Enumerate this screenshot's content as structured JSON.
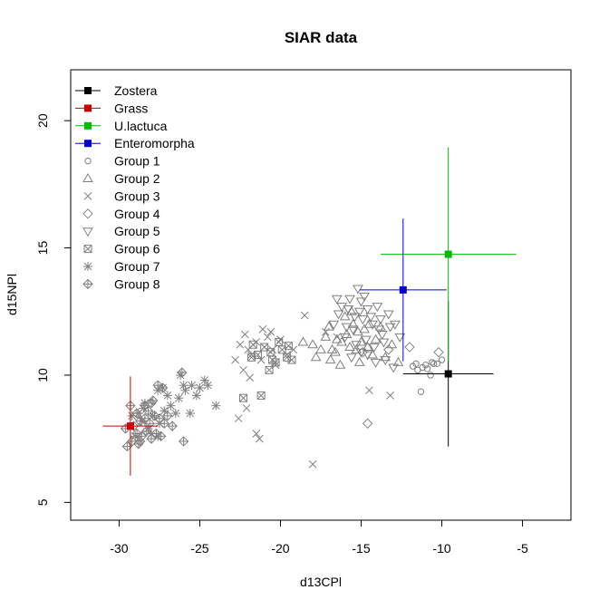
{
  "chart_data": {
    "type": "scatter",
    "title": "SIAR data",
    "xlabel": "d13CPl",
    "ylabel": "d15NPl",
    "xlim": [
      -33,
      -2
    ],
    "ylim": [
      4.3,
      22
    ],
    "x_ticks": [
      -30,
      -25,
      -20,
      -15,
      -10,
      -5
    ],
    "y_ticks": [
      5,
      10,
      15,
      20
    ],
    "grid": false,
    "legend_position": "top-left",
    "sources": [
      {
        "name": "Zostera",
        "color": "#000000",
        "x": -9.6,
        "y": 10.05,
        "x_sd": 2.8,
        "y_sd": 2.85
      },
      {
        "name": "Grass",
        "color": "#cc0000",
        "x": -29.3,
        "y": 8.0,
        "x_sd": 1.7,
        "y_sd": 1.95
      },
      {
        "name": "U.lactuca",
        "color": "#00bb00",
        "x": -9.6,
        "y": 14.75,
        "x_sd": 4.2,
        "y_sd": 4.2
      },
      {
        "name": "Enteromorpha",
        "color": "#0000cc",
        "x": -12.4,
        "y": 13.35,
        "x_sd": 2.7,
        "y_sd": 2.8
      }
    ],
    "groups": [
      {
        "name": "Group 1",
        "symbol": "circle",
        "color": "#808080",
        "points": [
          [
            -11.8,
            10.35
          ],
          [
            -11.5,
            10.2
          ],
          [
            -11.2,
            10.3
          ],
          [
            -10.9,
            10.25
          ],
          [
            -10.6,
            10.5
          ],
          [
            -10.3,
            10.45
          ],
          [
            -11.3,
            9.35
          ],
          [
            -10.7,
            10.0
          ],
          [
            -11.6,
            10.45
          ],
          [
            -10.5,
            10.45
          ],
          [
            -10.0,
            10.6
          ],
          [
            -11.0,
            10.4
          ]
        ]
      },
      {
        "name": "Group 2",
        "symbol": "triangle-up",
        "color": "#808080",
        "points": [
          [
            -18.0,
            11.2
          ],
          [
            -17.5,
            11.0
          ],
          [
            -17.2,
            11.5
          ],
          [
            -16.8,
            11.0
          ],
          [
            -16.5,
            11.4
          ],
          [
            -16.2,
            11.3
          ],
          [
            -15.9,
            11.6
          ],
          [
            -15.5,
            12.0
          ],
          [
            -15.2,
            11.7
          ],
          [
            -15.0,
            11.3
          ],
          [
            -14.8,
            11.8
          ],
          [
            -14.5,
            12.0
          ],
          [
            -16.0,
            12.3
          ],
          [
            -15.7,
            11.1
          ],
          [
            -17.8,
            10.7
          ],
          [
            -16.6,
            10.9
          ],
          [
            -15.3,
            11.0
          ],
          [
            -14.3,
            10.8
          ],
          [
            -14.1,
            11.4
          ],
          [
            -13.8,
            11.9
          ],
          [
            -16.3,
            10.4
          ],
          [
            -15.1,
            10.5
          ],
          [
            -13.5,
            10.7
          ],
          [
            -12.7,
            10.5
          ],
          [
            -13.1,
            11.2
          ],
          [
            -17.0,
            11.9
          ],
          [
            -15.6,
            12.5
          ],
          [
            -18.6,
            11.3
          ],
          [
            -14.6,
            11.1
          ],
          [
            -16.9,
            10.6
          ]
        ]
      },
      {
        "name": "Group 3",
        "symbol": "cross",
        "color": "#808080",
        "points": [
          [
            -22.5,
            11.2
          ],
          [
            -22.0,
            11.0
          ],
          [
            -21.8,
            10.8
          ],
          [
            -21.5,
            11.3
          ],
          [
            -21.2,
            10.6
          ],
          [
            -21.0,
            11.1
          ],
          [
            -20.8,
            11.5
          ],
          [
            -20.5,
            11.0
          ],
          [
            -22.3,
            10.2
          ],
          [
            -21.9,
            9.9
          ],
          [
            -22.6,
            8.3
          ],
          [
            -22.1,
            8.7
          ],
          [
            -21.5,
            7.7
          ],
          [
            -21.3,
            7.5
          ],
          [
            -18.0,
            6.5
          ],
          [
            -18.5,
            12.35
          ],
          [
            -17.2,
            11.7
          ],
          [
            -16.5,
            11.5
          ],
          [
            -14.5,
            9.4
          ],
          [
            -13.2,
            9.2
          ],
          [
            -20.0,
            11.4
          ],
          [
            -19.6,
            10.8
          ],
          [
            -22.2,
            11.6
          ],
          [
            -20.3,
            10.4
          ],
          [
            -21.1,
            11.8
          ],
          [
            -22.8,
            10.6
          ],
          [
            -20.6,
            11.7
          ],
          [
            -19.2,
            11.0
          ]
        ]
      },
      {
        "name": "Group 4",
        "symbol": "diamond",
        "color": "#808080",
        "points": [
          [
            -14.6,
            8.1
          ],
          [
            -10.2,
            10.9
          ],
          [
            -12.0,
            11.1
          ],
          [
            -14.9,
            10.9
          ],
          [
            -13.3,
            11.0
          ]
        ]
      },
      {
        "name": "Group 5",
        "symbol": "triangle-down",
        "color": "#808080",
        "points": [
          [
            -15.2,
            13.4
          ],
          [
            -15.7,
            13.0
          ],
          [
            -16.2,
            12.7
          ],
          [
            -15.0,
            12.9
          ],
          [
            -14.6,
            12.6
          ],
          [
            -14.9,
            12.2
          ],
          [
            -15.4,
            12.3
          ],
          [
            -15.9,
            11.9
          ],
          [
            -14.3,
            12.0
          ],
          [
            -13.9,
            11.8
          ],
          [
            -14.7,
            11.4
          ],
          [
            -15.3,
            11.2
          ],
          [
            -16.0,
            11.5
          ],
          [
            -14.2,
            11.1
          ],
          [
            -13.7,
            11.6
          ],
          [
            -13.2,
            11.9
          ],
          [
            -12.9,
            12.0
          ],
          [
            -14.6,
            10.8
          ],
          [
            -15.6,
            10.7
          ],
          [
            -13.5,
            10.6
          ],
          [
            -13.0,
            10.3
          ],
          [
            -14.1,
            10.5
          ],
          [
            -16.4,
            12.4
          ],
          [
            -15.1,
            12.5
          ],
          [
            -13.8,
            12.2
          ],
          [
            -14.8,
            13.1
          ],
          [
            -16.5,
            13.0
          ],
          [
            -15.8,
            12.6
          ],
          [
            -12.6,
            11.5
          ],
          [
            -14.0,
            12.7
          ],
          [
            -15.5,
            11.8
          ],
          [
            -13.3,
            12.4
          ],
          [
            -16.7,
            12.0
          ],
          [
            -14.4,
            12.3
          ],
          [
            -15.0,
            10.9
          ],
          [
            -13.6,
            11.3
          ]
        ]
      },
      {
        "name": "Group 6",
        "symbol": "square-x",
        "color": "#808080",
        "points": [
          [
            -19.9,
            11.0
          ],
          [
            -19.6,
            10.7
          ],
          [
            -20.3,
            10.5
          ],
          [
            -20.6,
            10.9
          ],
          [
            -21.0,
            11.1
          ],
          [
            -21.4,
            10.8
          ],
          [
            -19.3,
            10.6
          ],
          [
            -20.1,
            11.3
          ],
          [
            -21.8,
            10.7
          ],
          [
            -20.7,
            10.2
          ],
          [
            -19.5,
            11.15
          ],
          [
            -21.2,
            9.2
          ],
          [
            -22.3,
            9.1
          ],
          [
            -20.5,
            10.6
          ],
          [
            -21.7,
            11.2
          ]
        ]
      },
      {
        "name": "Group 7",
        "symbol": "asterisk",
        "color": "#808080",
        "points": [
          [
            -28.6,
            8.2
          ],
          [
            -28.2,
            7.9
          ],
          [
            -27.9,
            8.4
          ],
          [
            -27.5,
            8.1
          ],
          [
            -27.2,
            8.6
          ],
          [
            -26.8,
            8.8
          ],
          [
            -26.3,
            9.1
          ],
          [
            -25.9,
            9.4
          ],
          [
            -25.5,
            9.6
          ],
          [
            -25.0,
            9.5
          ],
          [
            -24.7,
            9.8
          ],
          [
            -24.5,
            9.6
          ],
          [
            -25.2,
            9.2
          ],
          [
            -26.0,
            9.6
          ],
          [
            -27.0,
            9.2
          ],
          [
            -27.6,
            9.4
          ],
          [
            -28.4,
            8.9
          ],
          [
            -28.8,
            8.5
          ],
          [
            -29.0,
            7.6
          ],
          [
            -28.0,
            7.7
          ],
          [
            -27.6,
            7.6
          ],
          [
            -26.5,
            8.5
          ],
          [
            -25.6,
            8.5
          ],
          [
            -24.0,
            8.8
          ],
          [
            -26.2,
            10.0
          ],
          [
            -27.3,
            9.5
          ],
          [
            -29.2,
            8.4
          ],
          [
            -28.5,
            8.7
          ]
        ]
      },
      {
        "name": "Group 8",
        "symbol": "diamond-plus",
        "color": "#808080",
        "points": [
          [
            -29.5,
            7.2
          ],
          [
            -29.2,
            7.4
          ],
          [
            -28.8,
            7.3
          ],
          [
            -28.6,
            7.6
          ],
          [
            -28.3,
            7.8
          ],
          [
            -28.0,
            7.5
          ],
          [
            -27.7,
            7.7
          ],
          [
            -29.1,
            8.0
          ],
          [
            -28.7,
            8.2
          ],
          [
            -28.4,
            8.3
          ],
          [
            -28.1,
            8.1
          ],
          [
            -27.8,
            8.4
          ],
          [
            -27.5,
            8.3
          ],
          [
            -27.2,
            8.1
          ],
          [
            -28.9,
            8.5
          ],
          [
            -28.4,
            8.8
          ],
          [
            -27.9,
            9.0
          ],
          [
            -27.6,
            9.6
          ],
          [
            -27.3,
            9.5
          ],
          [
            -26.1,
            10.1
          ],
          [
            -26.0,
            7.4
          ],
          [
            -29.3,
            8.8
          ],
          [
            -28.0,
            8.9
          ],
          [
            -27.0,
            8.4
          ],
          [
            -29.6,
            7.9
          ],
          [
            -28.7,
            7.4
          ],
          [
            -27.4,
            7.6
          ],
          [
            -26.7,
            8.0
          ],
          [
            -28.2,
            8.6
          ],
          [
            -28.9,
            7.7
          ]
        ]
      }
    ]
  }
}
